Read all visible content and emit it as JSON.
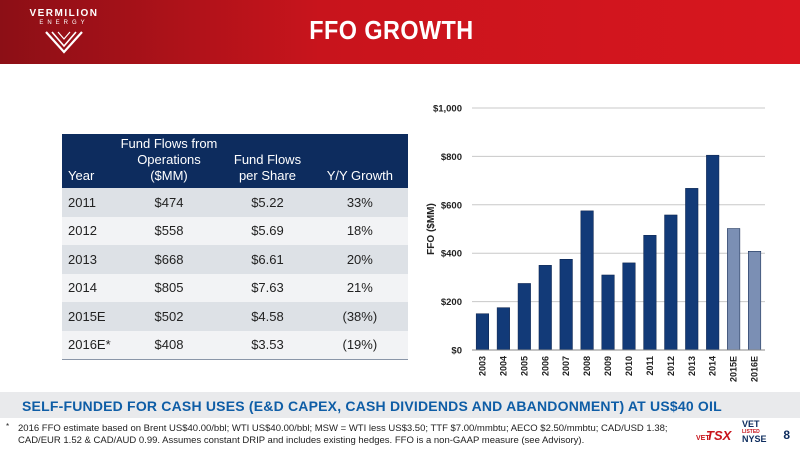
{
  "header": {
    "logo_name": "VERMILION",
    "logo_sub": "ENERGY",
    "title": "FFO GROWTH",
    "bg_color": "#d8161f"
  },
  "table": {
    "headers": {
      "year": "Year",
      "ffo": "Fund Flows from Operations ($MM)",
      "fps": "Fund Flows per Share",
      "yy": "Y/Y Growth"
    },
    "rows": [
      {
        "year": "2011",
        "ffo": "$474",
        "fps": "$5.22",
        "yy": "33%"
      },
      {
        "year": "2012",
        "ffo": "$558",
        "fps": "$5.69",
        "yy": "18%"
      },
      {
        "year": "2013",
        "ffo": "$668",
        "fps": "$6.61",
        "yy": "20%"
      },
      {
        "year": "2014",
        "ffo": "$805",
        "fps": "$7.63",
        "yy": "21%"
      },
      {
        "year": "2015E",
        "ffo": "$502",
        "fps": "$4.58",
        "yy": "(38%)"
      },
      {
        "year": "2016E*",
        "ffo": "$408",
        "fps": "$3.53",
        "yy": "(19%)"
      }
    ]
  },
  "chart_data": {
    "type": "bar",
    "title": "",
    "xlabel": "",
    "ylabel": "FFO ($MM)",
    "categories": [
      "2003",
      "2004",
      "2005",
      "2006",
      "2007",
      "2008",
      "2009",
      "2010",
      "2011",
      "2012",
      "2013",
      "2014",
      "2015E",
      "2016E"
    ],
    "values": [
      150,
      175,
      275,
      350,
      375,
      575,
      310,
      360,
      474,
      558,
      668,
      805,
      502,
      408
    ],
    "ylim": [
      0,
      1000
    ],
    "y_ticks": [
      0,
      200,
      400,
      600,
      800,
      1000
    ],
    "y_tick_labels": [
      "$0",
      "$200",
      "$400",
      "$600",
      "$800",
      "$1,000"
    ],
    "grid": true,
    "bar_colors": {
      "actual": "#123a78",
      "estimate": "#7b8fb4"
    }
  },
  "banner": {
    "text": "SELF-FUNDED FOR CASH USES (E&D CAPEX, CASH DIVIDENDS AND ABANDONMENT) AT US$40 OIL"
  },
  "footnote": {
    "marker": "*",
    "text": "2016 FFO estimate based on Brent US$40.00/bbl; WTI US$40.00/bbl; MSW = WTI less US$3.50; TTF $7.00/mmbtu; AECO $2.50/mmbtu; CAD/USD 1.38; CAD/EUR 1.52 & CAD/AUD 0.99. Assumes constant DRIP and includes existing hedges. FFO is a non-GAAP measure (see Advisory)."
  },
  "listing": {
    "tsx_vet": "VET",
    "tsx": "TSX",
    "nyse_vet": "VET",
    "listed": "LISTED",
    "nyse": "NYSE"
  },
  "page_number": "8"
}
